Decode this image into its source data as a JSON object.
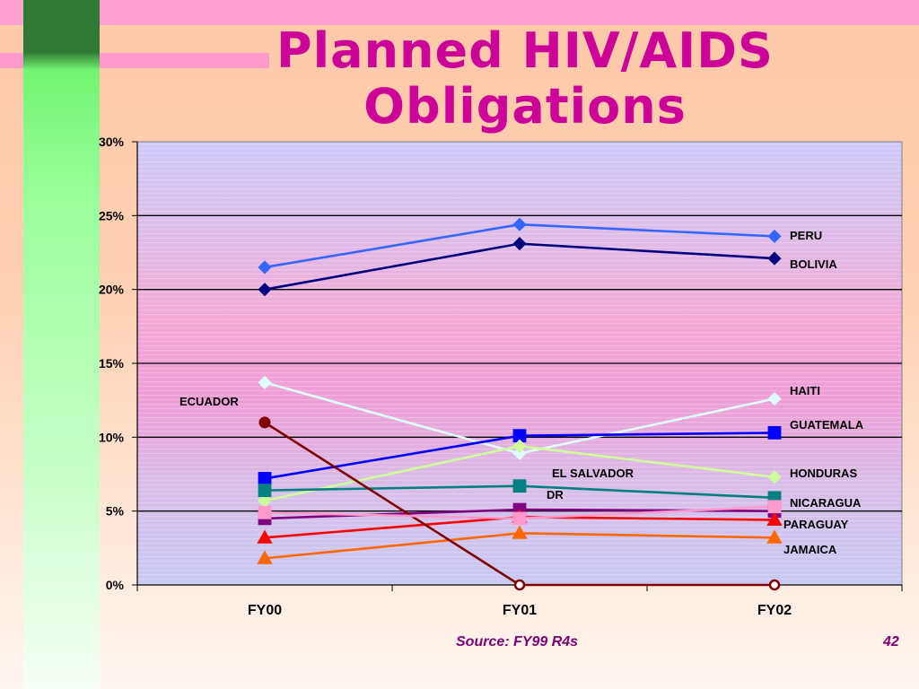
{
  "title_line1": "Planned HIV/AIDS",
  "title_line2": "Obligations",
  "source_note": "Source:  FY99 R4s",
  "page_number": "42",
  "chart_data": {
    "type": "line",
    "categories": [
      "FY00",
      "FY01",
      "FY02"
    ],
    "ylim": [
      0,
      30
    ],
    "yticks": [
      "0%",
      "5%",
      "10%",
      "15%",
      "20%",
      "25%",
      "30%"
    ],
    "grid": true,
    "series": [
      {
        "name": "PERU",
        "values": [
          21.5,
          24.4,
          23.6
        ],
        "color": "#3366ff",
        "marker": "diamond"
      },
      {
        "name": "BOLIVIA",
        "values": [
          20.0,
          23.1,
          22.1
        ],
        "color": "#000080",
        "marker": "diamond"
      },
      {
        "name": "HAITI",
        "values": [
          13.7,
          8.9,
          12.6
        ],
        "color": "#ddffff",
        "marker": "diamond"
      },
      {
        "name": "GUATEMALA",
        "values": [
          7.2,
          10.1,
          10.3
        ],
        "color": "#0000ff",
        "marker": "square"
      },
      {
        "name": "HONDURAS",
        "values": [
          5.7,
          9.4,
          7.3
        ],
        "color": "#ccff99",
        "marker": "diamond"
      },
      {
        "name": "EL SALVADOR",
        "values": [
          null,
          null,
          null
        ],
        "color": "#ff99cc",
        "marker": "square"
      },
      {
        "name": "NICARAGUA",
        "values": [
          6.4,
          6.7,
          5.9
        ],
        "color": "#008080",
        "marker": "square"
      },
      {
        "name": "DR",
        "values": [
          4.5,
          5.1,
          5.0
        ],
        "color": "#800080",
        "marker": "square"
      },
      {
        "name": "PARAGUAY",
        "values": [
          3.2,
          4.6,
          4.4
        ],
        "color": "#ff0000",
        "marker": "triangle"
      },
      {
        "name": "JAMAICA",
        "values": [
          1.8,
          3.5,
          3.2
        ],
        "color": "#ff6600",
        "marker": "triangle"
      },
      {
        "name": "ECUADOR",
        "values": [
          11.0,
          0.0,
          0.0
        ],
        "color": "#800000",
        "marker": "circle"
      },
      {
        "name": "",
        "values": [
          4.9,
          4.5,
          5.3
        ],
        "color": "#ff99cc",
        "marker": "square"
      }
    ],
    "annotations": [
      "ECUADOR",
      "PERU",
      "BOLIVIA",
      "HAITI",
      "GUATEMALA",
      "EL SALVADOR",
      "DR",
      "HONDURAS",
      "NICARAGUA",
      "PARAGUAY",
      "JAMAICA"
    ]
  }
}
